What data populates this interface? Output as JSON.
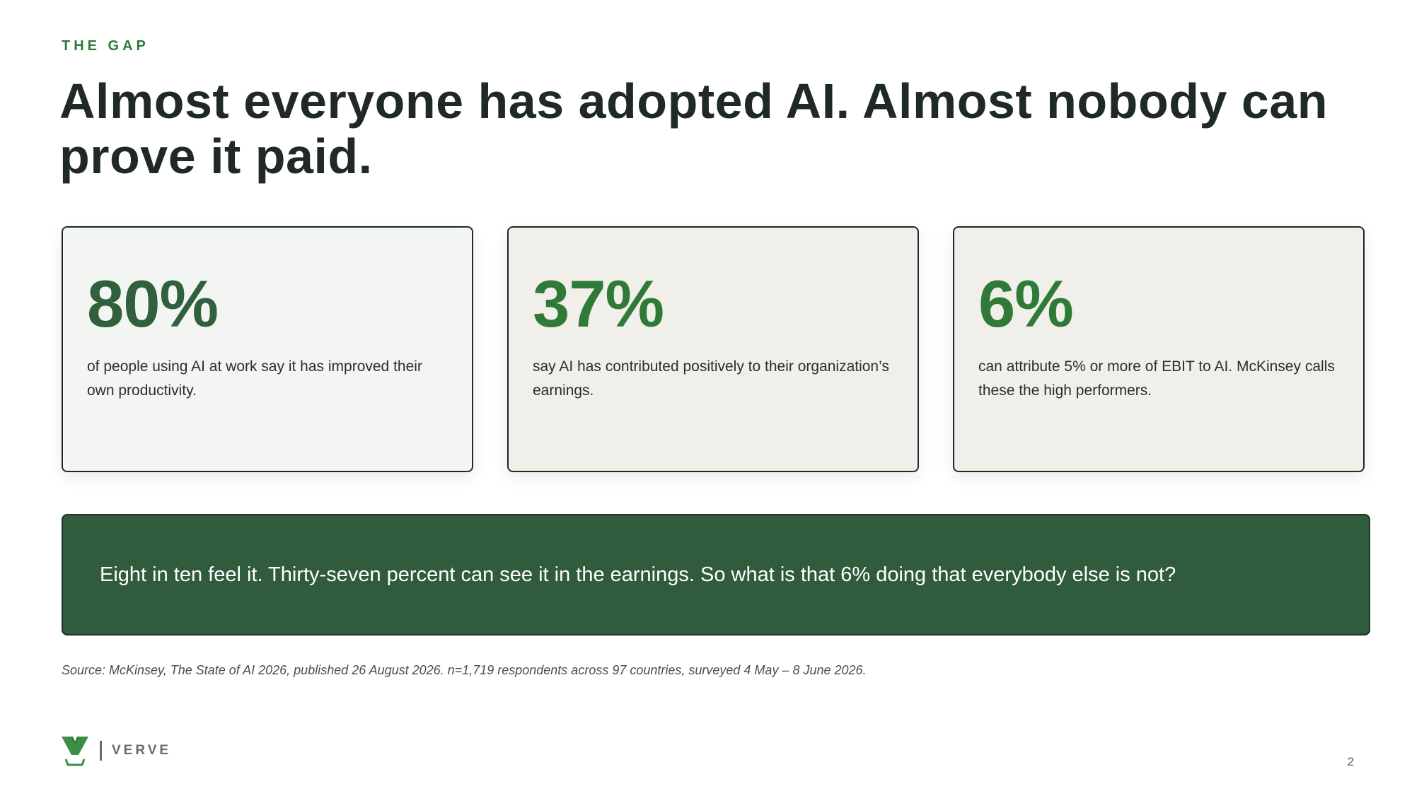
{
  "eyebrow": "THE GAP",
  "title": "Almost everyone has adopted AI. Almost nobody can prove it paid.",
  "cards": [
    {
      "stat": "80%",
      "text": "of people using AI at work say it has improved their own productivity."
    },
    {
      "stat": "37%",
      "text": "say AI has contributed positively to their organization’s earnings."
    },
    {
      "stat": "6%",
      "text": "can attribute 5% or more of EBIT to AI. McKinsey calls these the high performers."
    }
  ],
  "callout": "Eight in ten feel it. Thirty-seven percent can see it in the earnings. So what is that 6% doing that everybody else is not?",
  "source": "Source: McKinsey, The State of AI 2026, published 26 August 2026. n=1,719 respondents across 97 countries, surveyed 4 May – 8 June 2026.",
  "brand": {
    "name": "VERVE",
    "logo_icon": "verve-v-logo-icon"
  },
  "page_number": "2",
  "colors": {
    "accent_green": "#2f7a37",
    "dark_green": "#305b3c",
    "title_text": "#1f2a27",
    "card_light": "#f3f5f2",
    "card_beige": "#f0efe9"
  }
}
